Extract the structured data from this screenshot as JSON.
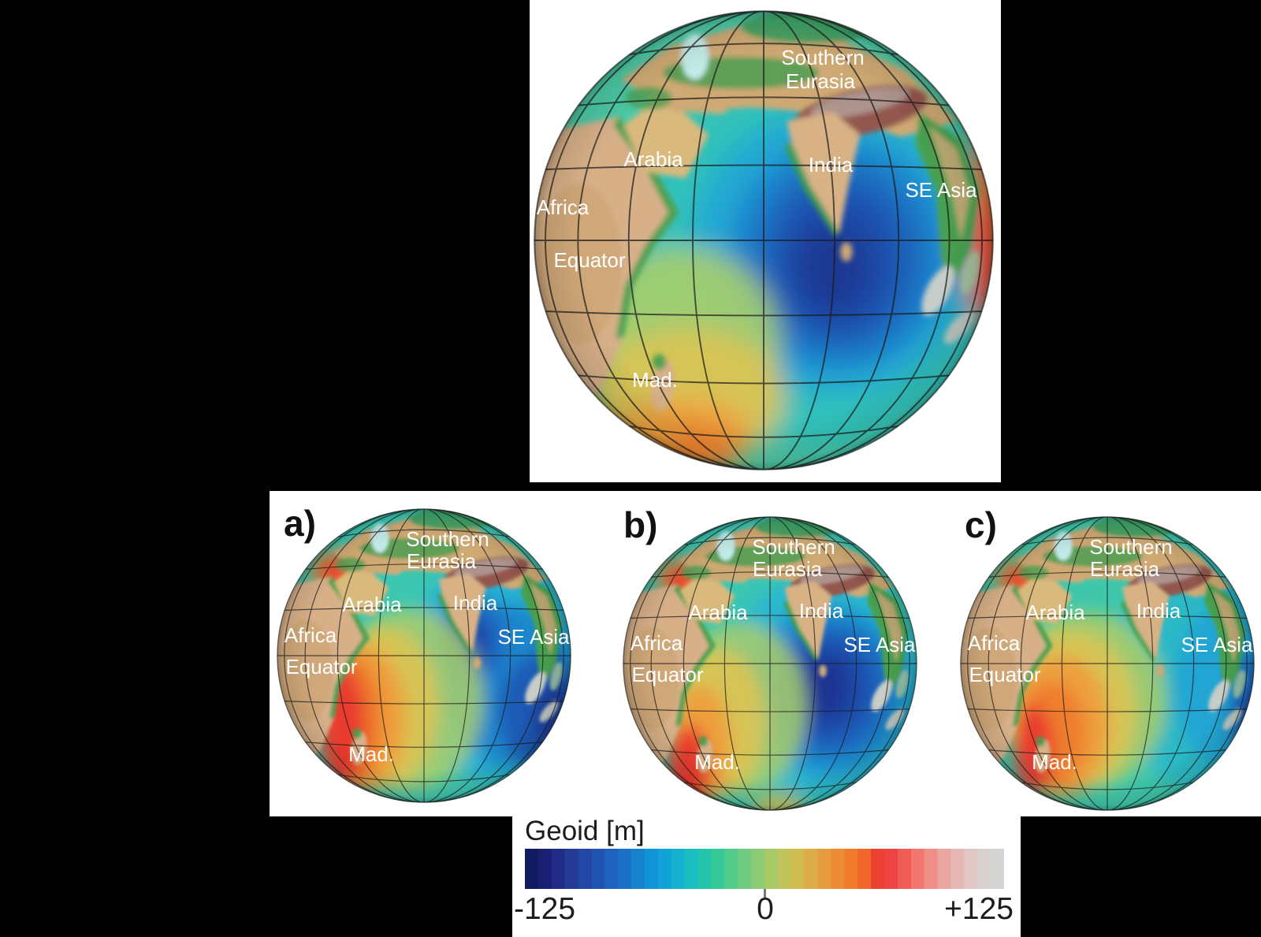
{
  "figure": {
    "captions": [
      {
        "id": "a",
        "label": "a)"
      },
      {
        "id": "b",
        "label": "b)"
      },
      {
        "id": "c",
        "label": "c)"
      }
    ],
    "globe_count": 4
  },
  "globe_labels": {
    "southern": "Southern",
    "eurasia": "Eurasia",
    "arabia": "Arabia",
    "india": "India",
    "se_asia": "SE Asia",
    "africa": "Africa",
    "equator": "Equator",
    "madagascar": "Mad."
  },
  "colorbar": {
    "title": "Geoid [m]",
    "tick_min": "-125",
    "tick_zero": "0",
    "tick_max": "+125",
    "colors": [
      "#141a5f",
      "#1a2173",
      "#212c87",
      "#253a97",
      "#2347a4",
      "#2153b0",
      "#1d62bc",
      "#1a71c6",
      "#1683cf",
      "#1094d6",
      "#10a4d6",
      "#14b2cf",
      "#1abdc0",
      "#23c4ab",
      "#35c997",
      "#52cb89",
      "#70cc81",
      "#8cca74",
      "#a8c966",
      "#c1c45b",
      "#d2bb51",
      "#ddab47",
      "#e69b3d",
      "#ec8b34",
      "#f07b2d",
      "#ef672b",
      "#ec4131",
      "#ee4343",
      "#f05b56",
      "#f2766f",
      "#f08f88",
      "#eba6a0",
      "#e5b8b3",
      "#dec7c4",
      "#d8d0ce",
      "#d4d4d3"
    ]
  },
  "palette": {
    "background": "#000000",
    "panel": "#ffffff",
    "globe_label_text": "#ffffff",
    "caption_text": "#111111",
    "ocean_low": "#1d3892",
    "ocean_high": "#e93b2f"
  }
}
